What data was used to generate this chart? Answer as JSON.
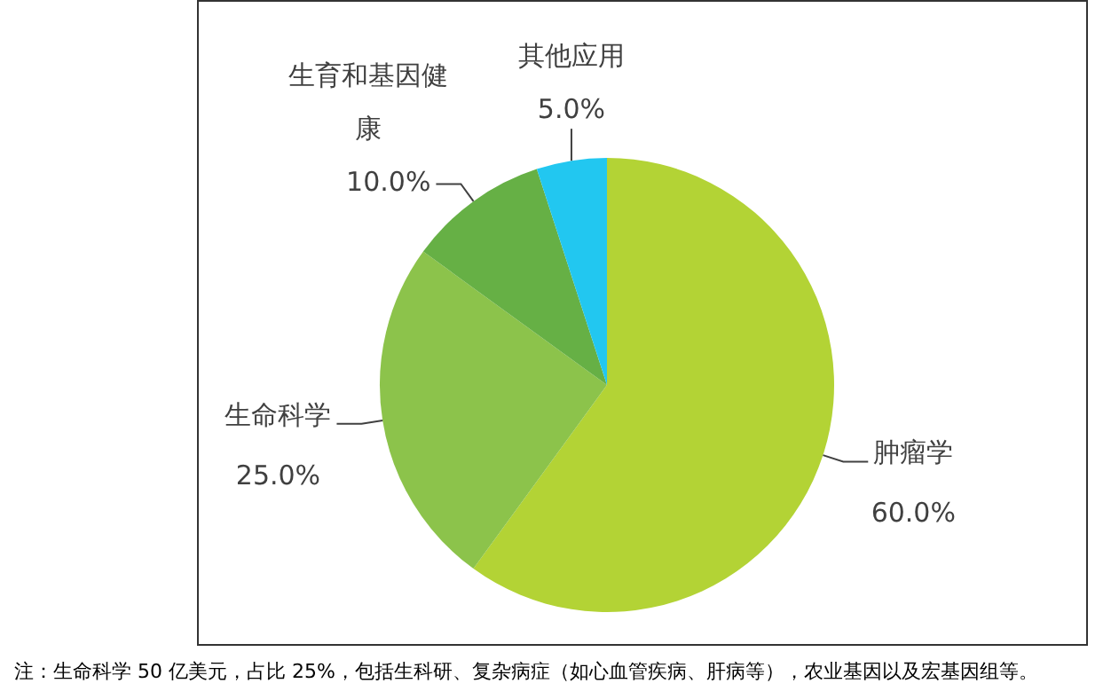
{
  "chart_data": {
    "type": "pie",
    "categories": [
      "肿瘤学",
      "生命科学",
      "生育和基因健康",
      "其他应用"
    ],
    "values": [
      60,
      25,
      10,
      5
    ],
    "value_labels": [
      "60.0%",
      "25.0%",
      "10.0%",
      "5.0%"
    ],
    "colors": [
      "#b3d335",
      "#8cc34b",
      "#66b045",
      "#22c7f0"
    ],
    "legend": false,
    "annotations": [
      "注：生命科学 50 亿美元，占比 25%，包括生科研、复杂病症（如心血管疾病、肝病等），农业基因以及宏基因组等。"
    ]
  }
}
